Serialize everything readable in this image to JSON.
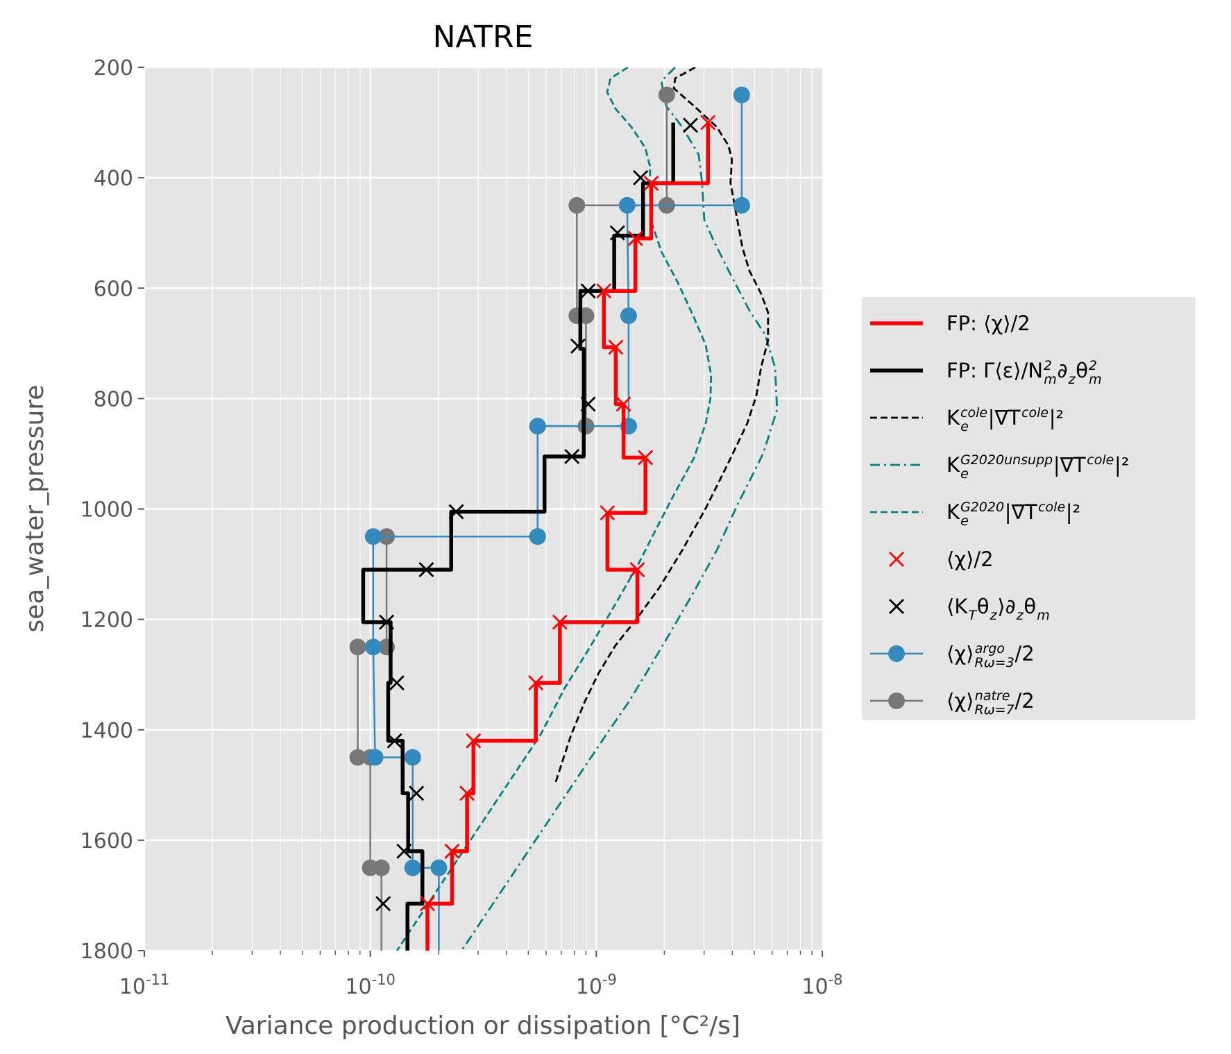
{
  "chart_data": {
    "type": "line",
    "title": "NATRE",
    "xlabel": "Variance production or dissipation [°C²/s]",
    "ylabel": "sea_water_pressure",
    "xscale": "log",
    "xlim": [
      1e-11,
      1e-08
    ],
    "ylim": [
      1800,
      200
    ],
    "y_inverted": true,
    "grid": true,
    "legend_placement": "right outside",
    "xticks": [
      {
        "value": 1e-11,
        "base": "10",
        "exp": "-11"
      },
      {
        "value": 1e-10,
        "base": "10",
        "exp": "-10"
      },
      {
        "value": 1e-09,
        "base": "10",
        "exp": "-9"
      },
      {
        "value": 1e-08,
        "base": "10",
        "exp": "-8"
      }
    ],
    "yticks": [
      "200",
      "400",
      "600",
      "800",
      "1000",
      "1200",
      "1400",
      "1600",
      "1800"
    ],
    "series": [
      {
        "name": "FP: ⟨χ⟩/2",
        "label": "FP: ⟨χ⟩/2",
        "style": "step",
        "color": "#ff0000",
        "pressure": [
          300,
          410,
          510,
          605,
          707,
          810,
          907,
          1007,
          1110,
          1205,
          1315,
          1420,
          1515,
          1620,
          1715
        ],
        "values": [
          3.12e-09,
          1.75e-09,
          1.49e-09,
          1.08e-09,
          1.22e-09,
          1.32e-09,
          1.65e-09,
          1.12e-09,
          1.52e-09,
          6.9e-10,
          5.4e-10,
          2.86e-10,
          2.68e-10,
          2.3e-10,
          1.79e-10
        ]
      },
      {
        "name": "FP: Γ⟨ε⟩/N²∂zθ²",
        "label": "FP: Γ⟨ε⟩/N_{m}^{2}∂_{z}θ_{m}^{2}",
        "style": "step",
        "color": "#000000",
        "pressure": [
          300,
          410,
          505,
          605,
          710,
          810,
          905,
          1005,
          1110,
          1205,
          1315,
          1420,
          1515,
          1620,
          1715
        ],
        "values": [
          2.19e-09,
          1.61e-09,
          1.2e-09,
          8.5e-10,
          8.8e-10,
          8.8e-10,
          5.9e-10,
          2.28e-10,
          9.3e-11,
          1.23e-10,
          1.2e-10,
          1.39e-10,
          1.47e-10,
          1.7e-10,
          1.46e-10
        ]
      },
      {
        "name": "K_e^cole|∇T^cole|²",
        "label": "K_{e}^{cole}|∇T^{cole}|²",
        "style": "dashed",
        "color": "#000000",
        "pressure": [
          200,
          220,
          238,
          270,
          308,
          342,
          367,
          409,
          459,
          527,
          568,
          610,
          644,
          694,
          744,
          795,
          845,
          916,
          999,
          1075,
          1143,
          1200,
          1247,
          1297,
          1348,
          1410,
          1500
        ],
        "log10_values": [
          -8.562,
          -8.651,
          -8.657,
          -8.568,
          -8.467,
          -8.415,
          -8.4,
          -8.406,
          -8.384,
          -8.353,
          -8.323,
          -8.271,
          -8.24,
          -8.24,
          -8.271,
          -8.292,
          -8.332,
          -8.415,
          -8.516,
          -8.62,
          -8.722,
          -8.823,
          -8.915,
          -8.989,
          -9.05,
          -9.112,
          -9.184
        ]
      },
      {
        "name": "K_e^G2020unsupp|∇T^cole|²",
        "label": "K_{e}^{G2020unsupp}|∇T^{cole}|²",
        "style": "dashdot",
        "color": "#008080",
        "pressure": [
          200,
          225,
          270,
          308,
          358,
          409,
          477,
          518,
          568,
          640,
          685,
          744,
          820,
          899,
          942,
          992,
          1075,
          1150,
          1222,
          1294,
          1348,
          1410,
          1800
        ],
        "log10_values": [
          -8.651,
          -8.712,
          -8.691,
          -8.62,
          -8.547,
          -8.532,
          -8.522,
          -8.476,
          -8.415,
          -8.323,
          -8.252,
          -8.209,
          -8.2,
          -8.261,
          -8.313,
          -8.375,
          -8.467,
          -8.568,
          -8.67,
          -8.774,
          -8.854,
          -8.958,
          -9.596
        ]
      },
      {
        "name": "K_e^G2020|∇T^cole|²",
        "label": "K_{e}^{G2020}|∇T^{cole}|²",
        "style": "dashed",
        "color": "#008080",
        "pressure": [
          200,
          220,
          245,
          275,
          308,
          346,
          380,
          426,
          484,
          534,
          590,
          653,
          703,
          757,
          800,
          845,
          908,
          970,
          1033,
          1100,
          1172,
          1251,
          1326,
          1407,
          1800
        ],
        "log10_values": [
          -8.86,
          -8.937,
          -8.952,
          -8.915,
          -8.845,
          -8.783,
          -8.762,
          -8.762,
          -8.753,
          -8.712,
          -8.639,
          -8.568,
          -8.516,
          -8.492,
          -8.495,
          -8.516,
          -8.568,
          -8.651,
          -8.731,
          -8.814,
          -8.915,
          -9.029,
          -9.142,
          -9.244,
          -9.882
        ]
      },
      {
        "name": "⟨χ⟩/2",
        "label": "⟨χ⟩/2",
        "style": "xmarker",
        "color": "#ff0000",
        "pressure": [
          300,
          410,
          510,
          605,
          707,
          810,
          907,
          1007,
          1110,
          1205,
          1315,
          1420,
          1515,
          1620,
          1715
        ],
        "values": [
          3.12e-09,
          1.75e-09,
          1.49e-09,
          1.08e-09,
          1.22e-09,
          1.32e-09,
          1.65e-09,
          1.12e-09,
          1.52e-09,
          6.9e-10,
          5.4e-10,
          2.86e-10,
          2.68e-10,
          2.3e-10,
          1.79e-10
        ]
      },
      {
        "name": "⟨K_T θz⟩∂zθm",
        "label": "⟨K_{T}θ_{z}⟩∂_{z}θ_{m}",
        "style": "xmarker",
        "color": "#000000",
        "pressure": [
          305,
          400,
          500,
          605,
          705,
          810,
          905,
          1005,
          1110,
          1205,
          1315,
          1420,
          1515,
          1620,
          1715
        ],
        "values": [
          2.61e-09,
          1.57e-09,
          1.24e-09,
          9.2e-10,
          8.3e-10,
          9.2e-10,
          7.8e-10,
          2.4e-10,
          1.77e-10,
          1.18e-10,
          1.31e-10,
          1.28e-10,
          1.6e-10,
          1.41e-10,
          1.14e-10
        ]
      },
      {
        "name": "⟨χ⟩ argo Rω=3 /2",
        "label": "⟨χ⟩_{Rω=3}^{argo}/2",
        "style": "line-dot",
        "color": "#348abd",
        "pressure": [
          250,
          450,
          450,
          650,
          850,
          850,
          1050,
          1050,
          1250,
          1450,
          1450,
          1650,
          1650,
          1800
        ],
        "values": [
          4.4e-09,
          4.4e-09,
          1.37e-09,
          1.39e-09,
          1.39e-09,
          5.5e-10,
          5.5e-10,
          1.03e-10,
          1.03e-10,
          1.05e-10,
          1.54e-10,
          1.54e-10,
          2.01e-10,
          2.01e-10
        ]
      },
      {
        "name": "⟨χ⟩ natre Rω=7 /2",
        "label": "⟨χ⟩_{Rω=7}^{natre}/2",
        "style": "line-dot",
        "color": "#777777",
        "pressure": [
          250,
          450,
          450,
          650,
          650,
          850,
          850,
          1050,
          1050,
          1250,
          1250,
          1450,
          1450,
          1650,
          1650,
          1800
        ],
        "values": [
          2.05e-09,
          2.05e-09,
          8.2e-10,
          8.2e-10,
          9e-10,
          9e-10,
          5.5e-10,
          5.5e-10,
          1.18e-10,
          1.18e-10,
          8.8e-11,
          8.8e-11,
          1e-10,
          1e-10,
          1.12e-10,
          1.12e-10
        ]
      }
    ]
  }
}
